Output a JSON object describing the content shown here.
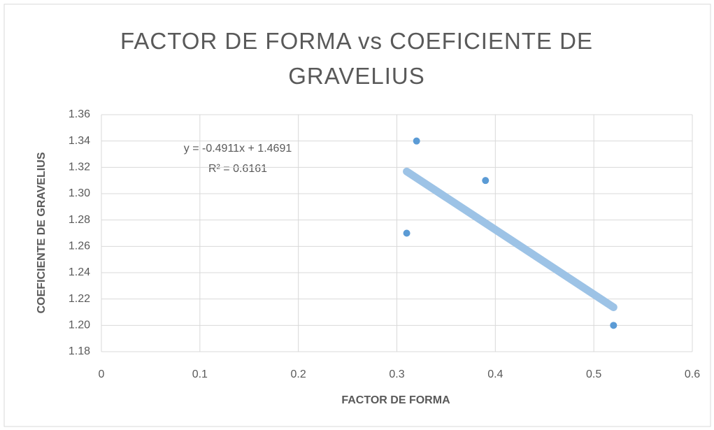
{
  "chart_data": {
    "type": "scatter",
    "title": "FACTOR DE FORMA vs COEFICIENTE DE GRAVELIUS",
    "x_label": "FACTOR DE FORMA",
    "y_label": "COEFICIENTE DE GRAVELIUS",
    "x": [
      0.31,
      0.32,
      0.39,
      0.52
    ],
    "values": [
      1.27,
      1.34,
      1.31,
      1.2
    ],
    "color": "#5b9bd5",
    "xlim": [
      0,
      0.6
    ],
    "xticks": [
      0,
      0.1,
      0.2,
      0.3,
      0.4,
      0.5,
      0.6
    ],
    "ylim": [
      1.18,
      1.36
    ],
    "yticks": [
      {
        "value": 1.18,
        "label": "1.18"
      },
      {
        "value": 1.2,
        "label": "1.20"
      },
      {
        "value": 1.22,
        "label": "1.22"
      },
      {
        "value": 1.24,
        "label": "1.24"
      },
      {
        "value": 1.26,
        "label": "1.26"
      },
      {
        "value": 1.28,
        "label": "1.28"
      },
      {
        "value": 1.3,
        "label": "1.30"
      },
      {
        "value": 1.32,
        "label": "1.32"
      },
      {
        "value": 1.34,
        "label": "1.34"
      },
      {
        "value": 1.36,
        "label": "1.36"
      }
    ],
    "grid": true,
    "trendline": {
      "equation": "y = -0.4911x + 1.4691",
      "r_squared": "R² = 0.6161",
      "slope": -0.4911,
      "intercept": 1.4691,
      "color": "#9dc3e6"
    }
  }
}
